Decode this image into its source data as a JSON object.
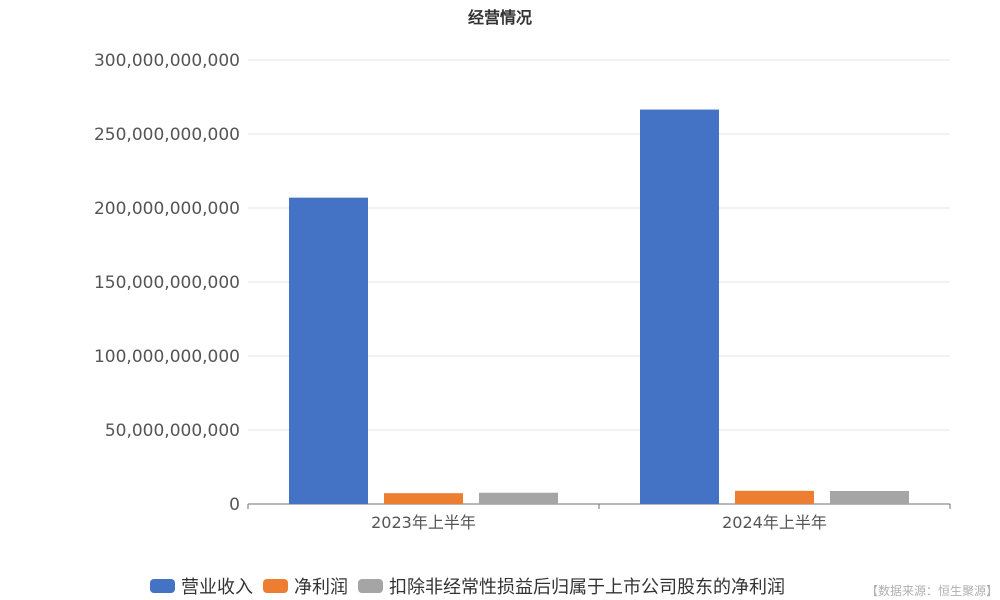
{
  "chart_data": {
    "type": "bar",
    "title": "经营情况",
    "categories": [
      "2023年上半年",
      "2024年上半年"
    ],
    "series": [
      {
        "name": "营业收入",
        "color": "#4472C4",
        "values": [
          207000000000,
          266500000000
        ]
      },
      {
        "name": "净利润",
        "color": "#ED7D31",
        "values": [
          7300000000,
          8900000000
        ]
      },
      {
        "name": "扣除非经常性损益后归属于上市公司股东的净利润",
        "color": "#A5A5A5",
        "values": [
          7600000000,
          8800000000
        ]
      }
    ],
    "ylim": [
      0,
      300000000000
    ],
    "yticks": [
      "0",
      "50,000,000,000",
      "100,000,000,000",
      "150,000,000,000",
      "200,000,000,000",
      "250,000,000,000",
      "300,000,000,000"
    ],
    "ytick_values": [
      0,
      50000000000,
      100000000000,
      150000000000,
      200000000000,
      250000000000,
      300000000000
    ],
    "grid": true,
    "legend_position": "bottom",
    "xlabel": "",
    "ylabel": ""
  },
  "source": "【数据来源：恒生聚源】"
}
